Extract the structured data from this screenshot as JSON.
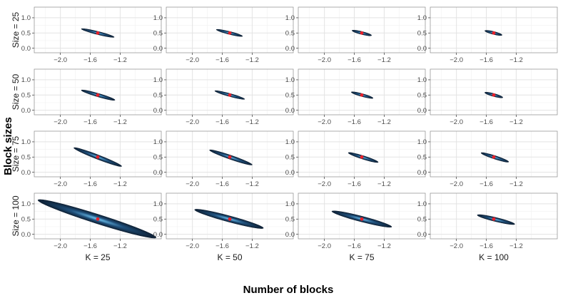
{
  "figure": {
    "ylabel": "Block sizes",
    "xlabel": "Number of blocks"
  },
  "colors": {
    "ellipse_outer": "#0d1f33",
    "ellipse_mid": "#1f4f7a",
    "ellipse_center": "#6ec3ef",
    "point": "#e8202a",
    "grid_major": "#e3e3e3",
    "grid_minor": "#f1f1f1",
    "panel_border": "#8a8a8a"
  },
  "chart_data": {
    "type": "scatter",
    "description_free": true,
    "x_ticks": [
      -2.0,
      -1.6,
      -1.2
    ],
    "x_tick_labels": [
      "−2.0",
      "−1.6",
      "−1.2"
    ],
    "y_ticks": [
      0.0,
      0.5,
      1.0
    ],
    "y_tick_labels": [
      "0.0",
      "0.5",
      "1.0"
    ],
    "xlim": [
      -2.35,
      -0.65
    ],
    "ylim": [
      -0.15,
      1.35
    ],
    "grid": true,
    "row_labels": [
      "Size = 25",
      "Size = 50",
      "Size = 75",
      "Size = 100"
    ],
    "col_labels": [
      "K = 25",
      "K = 50",
      "K = 75",
      "K = 100"
    ],
    "panels": [
      [
        {
          "center": [
            -1.5,
            0.5
          ],
          "x_range": [
            -1.72,
            -1.28
          ],
          "slope": -0.62,
          "width": 0.1
        },
        {
          "center": [
            -1.5,
            0.5
          ],
          "x_range": [
            -1.68,
            -1.33
          ],
          "slope": -0.62,
          "width": 0.085
        },
        {
          "center": [
            -1.5,
            0.5
          ],
          "x_range": [
            -1.63,
            -1.37
          ],
          "slope": -0.62,
          "width": 0.075
        },
        {
          "center": [
            -1.5,
            0.5
          ],
          "x_range": [
            -1.62,
            -1.39
          ],
          "slope": -0.62,
          "width": 0.07
        }
      ],
      [
        {
          "center": [
            -1.5,
            0.5
          ],
          "x_range": [
            -1.72,
            -1.27
          ],
          "slope": -0.72,
          "width": 0.11
        },
        {
          "center": [
            -1.5,
            0.5
          ],
          "x_range": [
            -1.7,
            -1.3
          ],
          "slope": -0.68,
          "width": 0.095
        },
        {
          "center": [
            -1.5,
            0.5
          ],
          "x_range": [
            -1.64,
            -1.35
          ],
          "slope": -0.68,
          "width": 0.08
        },
        {
          "center": [
            -1.5,
            0.5
          ],
          "x_range": [
            -1.62,
            -1.38
          ],
          "slope": -0.68,
          "width": 0.075
        }
      ],
      [
        {
          "center": [
            -1.5,
            0.5
          ],
          "x_range": [
            -1.82,
            -1.18
          ],
          "slope": -0.95,
          "width": 0.14
        },
        {
          "center": [
            -1.5,
            0.5
          ],
          "x_range": [
            -1.77,
            -1.2
          ],
          "slope": -0.85,
          "width": 0.13
        },
        {
          "center": [
            -1.5,
            0.5
          ],
          "x_range": [
            -1.68,
            -1.28
          ],
          "slope": -0.78,
          "width": 0.11
        },
        {
          "center": [
            -1.5,
            0.5
          ],
          "x_range": [
            -1.67,
            -1.3
          ],
          "slope": -0.8,
          "width": 0.11
        }
      ],
      [
        {
          "center": [
            -1.5,
            0.5
          ],
          "x_range": [
            -2.3,
            -0.72
          ],
          "slope": -0.78,
          "width": 0.3
        },
        {
          "center": [
            -1.5,
            0.5
          ],
          "x_range": [
            -1.97,
            -1.05
          ],
          "slope": -0.66,
          "width": 0.2
        },
        {
          "center": [
            -1.5,
            0.5
          ],
          "x_range": [
            -1.9,
            -1.1
          ],
          "slope": -0.64,
          "width": 0.18
        },
        {
          "center": [
            -1.5,
            0.5
          ],
          "x_range": [
            -1.72,
            -1.22
          ],
          "slope": -0.6,
          "width": 0.13
        }
      ]
    ],
    "point": {
      "x": -1.5,
      "y": 0.5
    }
  }
}
